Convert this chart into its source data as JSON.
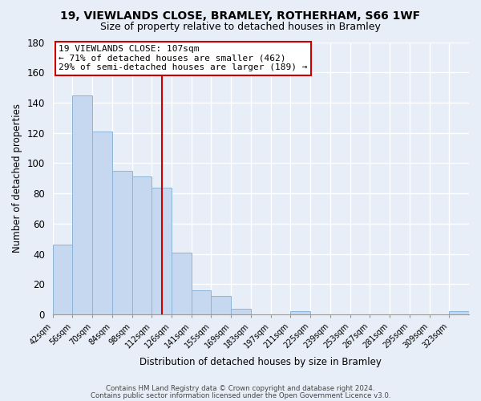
{
  "title": "19, VIEWLANDS CLOSE, BRAMLEY, ROTHERHAM, S66 1WF",
  "subtitle": "Size of property relative to detached houses in Bramley",
  "xlabel": "Distribution of detached houses by size in Bramley",
  "ylabel": "Number of detached properties",
  "bar_color": "#c5d8f0",
  "bar_edge_color": "#8ab4d8",
  "bin_labels": [
    "42sqm",
    "56sqm",
    "70sqm",
    "84sqm",
    "98sqm",
    "112sqm",
    "126sqm",
    "141sqm",
    "155sqm",
    "169sqm",
    "183sqm",
    "197sqm",
    "211sqm",
    "225sqm",
    "239sqm",
    "253sqm",
    "267sqm",
    "281sqm",
    "295sqm",
    "309sqm",
    "323sqm"
  ],
  "bar_heights": [
    46,
    145,
    121,
    95,
    91,
    84,
    41,
    16,
    12,
    4,
    0,
    0,
    2,
    0,
    0,
    0,
    0,
    0,
    0,
    0,
    2
  ],
  "ylim": [
    0,
    180
  ],
  "yticks": [
    0,
    20,
    40,
    60,
    80,
    100,
    120,
    140,
    160,
    180
  ],
  "vline_color": "#cc0000",
  "annotation_line1": "19 VIEWLANDS CLOSE: 107sqm",
  "annotation_line2": "← 71% of detached houses are smaller (462)",
  "annotation_line3": "29% of semi-detached houses are larger (189) →",
  "annotation_box_color": "#ffffff",
  "annotation_box_edge": "#cc0000",
  "footer_line1": "Contains HM Land Registry data © Crown copyright and database right 2024.",
  "footer_line2": "Contains public sector information licensed under the Open Government Licence v3.0.",
  "background_color": "#e8eef7",
  "grid_color": "#ffffff",
  "bin_width": 14,
  "vline_bin_index": 5
}
